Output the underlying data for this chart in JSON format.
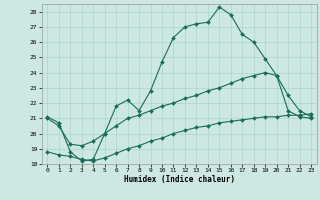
{
  "xlabel": "Humidex (Indice chaleur)",
  "background_color": "#cce8e0",
  "grid_color": "#aad4cc",
  "line_color": "#1a6b5a",
  "xlim": [
    -0.5,
    23.5
  ],
  "ylim": [
    18,
    28.5
  ],
  "xticks": [
    0,
    1,
    2,
    3,
    4,
    5,
    6,
    7,
    8,
    9,
    10,
    11,
    12,
    13,
    14,
    15,
    16,
    17,
    18,
    19,
    20,
    21,
    22,
    23
  ],
  "yticks": [
    18,
    19,
    20,
    21,
    22,
    23,
    24,
    25,
    26,
    27,
    28
  ],
  "series1_x": [
    0,
    1,
    2,
    3,
    4,
    5,
    6,
    7,
    8,
    9,
    10,
    11,
    12,
    13,
    14,
    15,
    16,
    17,
    18,
    19,
    20,
    21,
    22,
    23
  ],
  "series1_y": [
    21.1,
    20.7,
    18.8,
    18.2,
    18.3,
    20.0,
    21.8,
    22.2,
    21.5,
    22.8,
    24.7,
    26.3,
    27.0,
    27.2,
    27.3,
    28.3,
    27.8,
    26.5,
    26.0,
    24.9,
    23.8,
    21.5,
    21.1,
    21.0
  ],
  "series2_x": [
    0,
    1,
    2,
    3,
    4,
    5,
    6,
    7,
    8,
    9,
    10,
    11,
    12,
    13,
    14,
    15,
    16,
    17,
    18,
    19,
    20,
    21,
    22,
    23
  ],
  "series2_y": [
    21.0,
    20.5,
    19.3,
    19.2,
    19.5,
    20.0,
    20.5,
    21.0,
    21.2,
    21.5,
    21.8,
    22.0,
    22.3,
    22.5,
    22.8,
    23.0,
    23.3,
    23.6,
    23.8,
    24.0,
    23.8,
    22.5,
    21.5,
    21.1
  ],
  "series3_x": [
    0,
    1,
    2,
    3,
    4,
    5,
    6,
    7,
    8,
    9,
    10,
    11,
    12,
    13,
    14,
    15,
    16,
    17,
    18,
    19,
    20,
    21,
    22,
    23
  ],
  "series3_y": [
    18.8,
    18.6,
    18.5,
    18.3,
    18.2,
    18.4,
    18.7,
    19.0,
    19.2,
    19.5,
    19.7,
    20.0,
    20.2,
    20.4,
    20.5,
    20.7,
    20.8,
    20.9,
    21.0,
    21.1,
    21.1,
    21.2,
    21.2,
    21.3
  ]
}
